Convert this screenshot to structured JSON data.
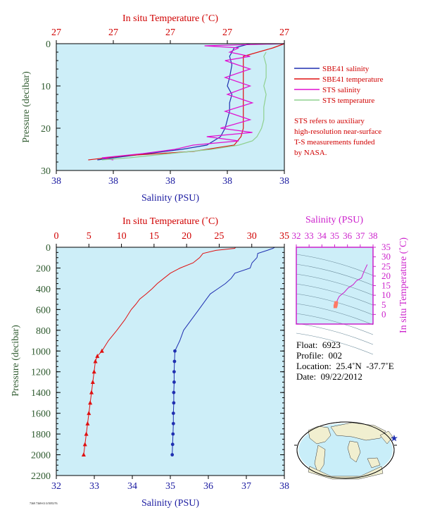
{
  "colors": {
    "salinity": "#1f2fb0",
    "temperature": "#e01010",
    "sts_salinity": "#e010d0",
    "sts_temperature": "#8fd08f",
    "plot_bg": "#cdeef8",
    "axis_blue": "#1a1aa0",
    "axis_red": "#d00000",
    "axis_green": "#2f5a2f",
    "axis_magenta": "#cc22cc"
  },
  "top_panel": {
    "top_axis_title": "In situ Temperature (˚C)",
    "top_ticks": [
      "27",
      "27",
      "27",
      "27",
      "27"
    ],
    "bottom_axis_title": "Salinity (PSU)",
    "bottom_ticks": [
      "38",
      "38",
      "38",
      "38",
      "38"
    ],
    "left_axis_title": "Pressure (decibar)",
    "left_ticks": [
      "0",
      "10",
      "20",
      "30"
    ]
  },
  "legend": [
    {
      "label": "SBE41 salinity",
      "color": "#1f2fb0"
    },
    {
      "label": "SBE41 temperature",
      "color": "#e01010"
    },
    {
      "label": "STS salinity",
      "color": "#e010d0"
    },
    {
      "label": "STS temperature",
      "color": "#8fd08f"
    }
  ],
  "note": [
    "STS refers to auxiliary",
    "high-resolution near-surface",
    "T-S measurements funded",
    "by NASA."
  ],
  "info": {
    "float": "Float:  6923",
    "profile": "Profile:  002",
    "location": "Location:  25.4˚N  -37.7˚E",
    "date": "Date:  09/22/2012"
  },
  "footer_code": "7369 7369-01 0/3955/76",
  "chart_data": [
    {
      "type": "line",
      "title": "",
      "xlabel": "Salinity (PSU)",
      "x2label": "In situ Temperature (˚C)",
      "ylabel": "Pressure (decibar)",
      "ylim": [
        0,
        30
      ],
      "y_inverted": true,
      "series": [
        {
          "name": "SBE41 salinity",
          "axis": "salinity_rel",
          "y": [
            0,
            1,
            2,
            3,
            5,
            8,
            10,
            12,
            14,
            16,
            18,
            20,
            22,
            24,
            25,
            26,
            27,
            27.5
          ],
          "x": [
            0.85,
            0.78,
            0.77,
            0.76,
            0.77,
            0.76,
            0.75,
            0.77,
            0.76,
            0.76,
            0.75,
            0.74,
            0.72,
            0.66,
            0.55,
            0.4,
            0.25,
            0.18
          ]
        },
        {
          "name": "SBE41 temperature",
          "axis": "temperature_rel",
          "y": [
            0,
            1,
            3,
            5,
            8,
            12,
            16,
            20,
            22,
            24,
            25.5,
            26.5,
            27.5
          ],
          "x": [
            1.0,
            0.95,
            0.82,
            0.82,
            0.82,
            0.82,
            0.82,
            0.82,
            0.81,
            0.78,
            0.6,
            0.3,
            0.14
          ]
        },
        {
          "name": "STS salinity",
          "axis": "salinity_rel",
          "y": [
            0,
            0.5,
            1,
            2,
            3,
            4,
            6,
            8,
            10,
            12,
            14,
            16,
            18,
            20,
            21,
            22,
            23,
            24,
            25,
            26,
            27,
            27.5
          ],
          "x": [
            1.0,
            0.65,
            0.8,
            0.76,
            0.85,
            0.74,
            0.85,
            0.74,
            0.85,
            0.75,
            0.86,
            0.74,
            0.85,
            0.72,
            0.86,
            0.66,
            0.8,
            0.6,
            0.52,
            0.38,
            0.2,
            0.25
          ]
        },
        {
          "name": "STS temperature",
          "axis": "temperature_rel",
          "y": [
            2,
            3,
            5,
            8,
            10,
            12,
            15,
            18,
            20,
            21,
            22,
            23,
            24,
            25,
            26,
            27,
            27.5
          ],
          "x": [
            0.92,
            0.91,
            0.92,
            0.92,
            0.91,
            0.92,
            0.91,
            0.91,
            0.9,
            0.89,
            0.88,
            0.86,
            0.8,
            0.68,
            0.5,
            0.32,
            0.2
          ]
        }
      ]
    },
    {
      "type": "line",
      "title": "",
      "xlabel": "Salinity (PSU)",
      "xlim": [
        32,
        38
      ],
      "x_ticks": [
        "32",
        "33",
        "34",
        "35",
        "36",
        "37",
        "38"
      ],
      "x2label": "In situ Temperature (˚C)",
      "x2lim": [
        0,
        35
      ],
      "x2_ticks": [
        "0",
        "5",
        "10",
        "15",
        "20",
        "25",
        "30",
        "35"
      ],
      "ylabel": "Pressure (decibar)",
      "ylim": [
        0,
        2200
      ],
      "y_ticks": [
        "0",
        "200",
        "400",
        "600",
        "800",
        "1000",
        "1200",
        "1400",
        "1600",
        "1800",
        "2000",
        "2200"
      ],
      "y_inverted": true,
      "series": [
        {
          "name": "Salinity",
          "axis": "salinity",
          "y": [
            0,
            10,
            30,
            60,
            100,
            150,
            200,
            250,
            300,
            350,
            400,
            450,
            500,
            600,
            700,
            800,
            900,
            1000,
            1100,
            1200,
            1300,
            1400,
            1500,
            1600,
            1700,
            1800,
            1900,
            2000
          ],
          "x": [
            37.75,
            37.7,
            37.55,
            37.3,
            37.28,
            37.15,
            37.1,
            36.7,
            36.6,
            36.45,
            36.25,
            36.05,
            35.95,
            35.75,
            35.55,
            35.35,
            35.25,
            35.12,
            35.11,
            35.1,
            35.1,
            35.09,
            35.09,
            35.08,
            35.08,
            35.07,
            35.06,
            35.05
          ]
        },
        {
          "name": "Temperature",
          "axis": "temperature",
          "y": [
            0,
            10,
            30,
            60,
            100,
            150,
            200,
            250,
            300,
            350,
            400,
            450,
            500,
            550,
            600,
            700,
            800,
            900,
            1000,
            1050,
            1100,
            1200,
            1300,
            1400,
            1500,
            1600,
            1700,
            1800,
            1900,
            2000
          ],
          "x": [
            27.5,
            27.4,
            24.5,
            22.5,
            22.0,
            21.0,
            19.0,
            17.5,
            16.5,
            15.5,
            14.7,
            13.8,
            12.8,
            12.2,
            11.5,
            10.5,
            9.3,
            8.0,
            7.0,
            6.3,
            6.0,
            5.8,
            5.6,
            5.4,
            5.2,
            5.0,
            4.8,
            4.6,
            4.4,
            4.2
          ]
        }
      ]
    },
    {
      "type": "scatter",
      "title": "",
      "xlabel": "Salinity (PSU)",
      "xlim": [
        32,
        38
      ],
      "x_ticks": [
        "32",
        "33",
        "34",
        "35",
        "36",
        "37",
        "38"
      ],
      "ylabel": "In situ Temperature (˚C)",
      "ylim": [
        -5,
        35
      ],
      "y_ticks": [
        "0",
        "5",
        "10",
        "15",
        "20",
        "25",
        "30",
        "35"
      ],
      "series": [
        {
          "name": "T-S",
          "x": [
            35.05,
            35.08,
            35.1,
            35.12,
            35.25,
            35.35,
            35.55,
            35.75,
            36.05,
            36.45,
            36.7,
            37.1,
            37.3,
            37.55
          ],
          "y": [
            4.2,
            4.8,
            5.4,
            6.0,
            8.0,
            9.3,
            10.5,
            11.5,
            13.8,
            15.5,
            17.5,
            19.0,
            22.5,
            26.0
          ]
        }
      ]
    }
  ]
}
